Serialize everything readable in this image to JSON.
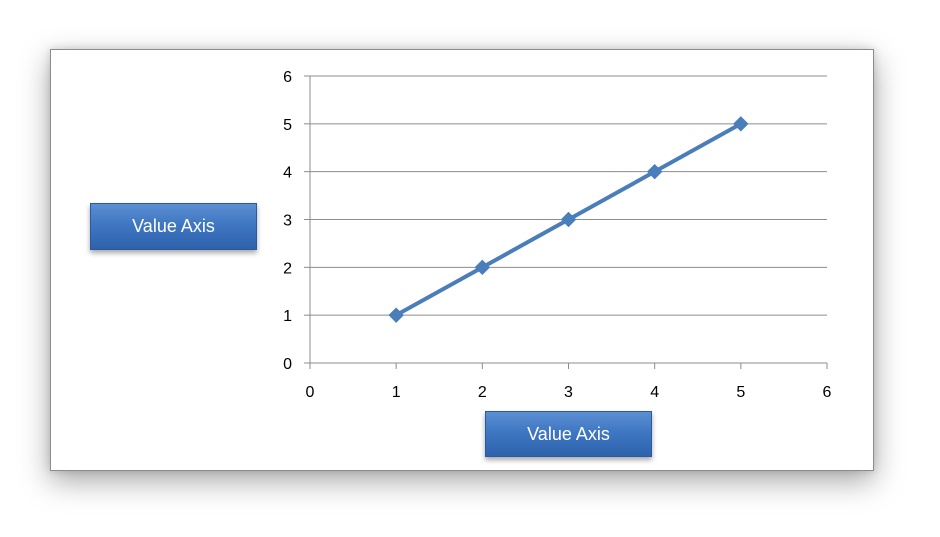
{
  "chart_data": {
    "type": "scatter",
    "title": "",
    "xlabel": "Value Axis",
    "ylabel": "Value Axis",
    "xlim": [
      0,
      6
    ],
    "ylim": [
      0,
      6
    ],
    "x_ticks": [
      "0",
      "1",
      "2",
      "3",
      "4",
      "5",
      "6"
    ],
    "y_ticks": [
      "0",
      "1",
      "2",
      "3",
      "4",
      "5",
      "6"
    ],
    "grid": "horizontal",
    "legend": "none",
    "series": [
      {
        "x": [
          1,
          2,
          3,
          4,
          5
        ],
        "y": [
          1,
          2,
          3,
          4,
          5
        ],
        "marker": "diamond",
        "line": true,
        "color": "#4a7ebb"
      }
    ]
  },
  "colors": {
    "series": "#4a7ebb",
    "gridline": "#8c8c8c",
    "axis_title_fill": "#3f77c2"
  }
}
